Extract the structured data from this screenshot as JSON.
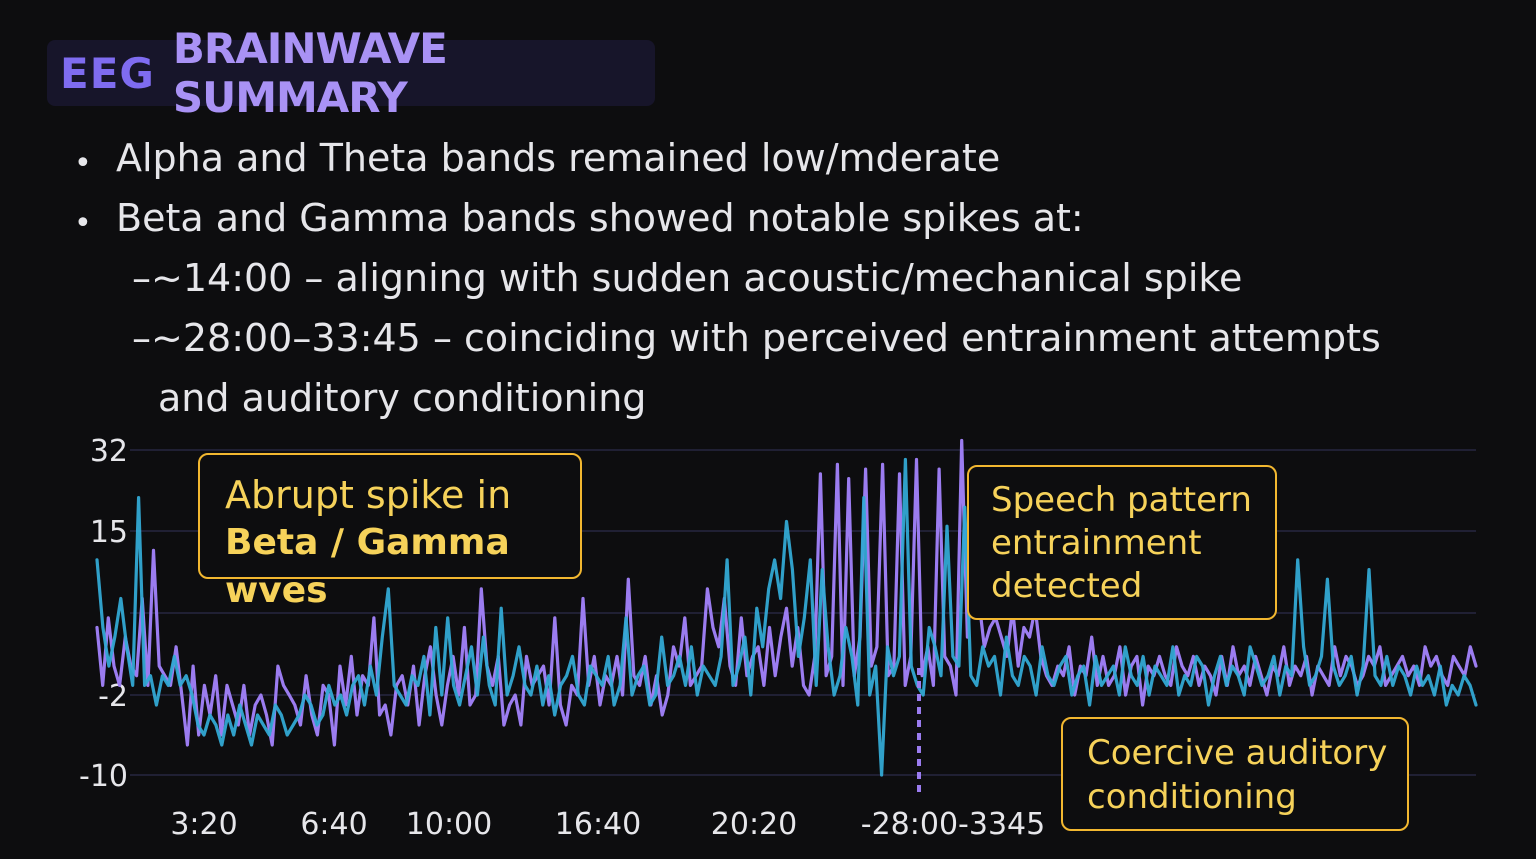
{
  "header": {
    "title_a": "EEG",
    "title_b": "BRAINWAVE SUMMARY"
  },
  "bullets": [
    "Alpha and Theta bands remained low/mderate",
    "Beta and Gamma bands showed notable spikes at:"
  ],
  "sub_bullets": [
    "–~14:00 – aligning with sudden acoustic/mechanical spike",
    "–~28:00–33:45 – coinciding with perceived entrainment attempts",
    "and auditory conditioning"
  ],
  "callouts": {
    "beta_gamma": [
      "Abrupt spike in",
      "Beta / Gamma wves"
    ],
    "speech": [
      "Speech pattern",
      "entrainment",
      "detected"
    ],
    "coercive": [
      "Coercive auditory",
      "conditioning"
    ]
  },
  "colors": {
    "purple_series": "#9b7cf0",
    "cyan_series": "#33a9d4",
    "callout_border": "#f2b730",
    "callout_text": "#f6d25a"
  },
  "chart_data": {
    "type": "line",
    "y_ticks": [
      "32",
      "15",
      "-2",
      "-10"
    ],
    "x_ticks": [
      "3:20",
      "6:40",
      "10:00",
      "16:40",
      "20:20",
      "-28:00-3345"
    ],
    "ylim": [
      -10,
      32
    ],
    "grid": true,
    "marker_line": "~28:00",
    "series": [
      {
        "color": "#9b7cf0",
        "values": [
          5,
          -1,
          6,
          1,
          -1,
          4,
          1,
          0,
          8,
          -1,
          13,
          1,
          0,
          -1,
          3,
          -2,
          -7,
          1,
          -6,
          -1,
          -4,
          0,
          -6,
          -1,
          -3,
          -5,
          -1,
          -6,
          -3,
          -2,
          -4,
          -7,
          1,
          -1,
          -2,
          -3,
          -5,
          0,
          -4,
          -6,
          -1,
          -2,
          -7,
          1,
          -3,
          2,
          -4,
          0,
          -1,
          6,
          -4,
          -3,
          -6,
          -1,
          0,
          -3,
          1,
          -5,
          0,
          3,
          -2,
          -5,
          -1,
          2,
          -2,
          5,
          -3,
          -2,
          9,
          1,
          -1,
          2,
          -5,
          -3,
          -2,
          -5,
          2,
          -1,
          0,
          1,
          -3,
          6,
          -3,
          -5,
          -1,
          -2,
          8,
          -1,
          2,
          -3,
          0,
          -1,
          2,
          -2,
          10,
          0,
          -1,
          2,
          -3,
          0,
          -4,
          -2,
          3,
          1,
          6,
          -1,
          0,
          1,
          9,
          5,
          3,
          8,
          1,
          -1,
          6,
          0,
          2,
          3,
          -1,
          5,
          0,
          4,
          7,
          1,
          5,
          -1,
          -2,
          2,
          27,
          0,
          2,
          29,
          -1,
          26,
          0,
          4,
          28,
          1,
          3,
          29,
          0,
          1,
          27,
          -1,
          2,
          30,
          0,
          3,
          -1,
          28,
          2,
          1,
          -2,
          34,
          4,
          12,
          8,
          3,
          5,
          6,
          4,
          2,
          7,
          1,
          5,
          4,
          7,
          2,
          0,
          -1,
          1,
          0,
          3,
          -2,
          1,
          0,
          4,
          -1,
          2,
          -1,
          0,
          3,
          -2,
          1,
          2,
          -3,
          1,
          0,
          2,
          0,
          -1,
          3,
          1,
          0,
          2,
          -1,
          1,
          0,
          -2,
          2,
          -1,
          3,
          0,
          1,
          -1,
          2,
          0,
          -2,
          1,
          0,
          3,
          -1,
          1,
          0,
          2,
          -2,
          1,
          0,
          -1,
          3,
          0,
          2,
          1,
          -1,
          0,
          2,
          1,
          3,
          -1,
          0,
          1,
          2,
          0,
          1,
          -1,
          3,
          1,
          2,
          0,
          -1,
          2,
          1,
          0,
          3,
          1
        ]
      },
      {
        "color": "#33a9d4",
        "values": [
          12,
          5,
          1,
          4,
          8,
          3,
          -1,
          22,
          -1,
          0,
          -3,
          0,
          -1,
          2,
          -1,
          0,
          -2,
          -5,
          -6,
          -4,
          -5,
          -7,
          -4,
          -6,
          -3,
          -5,
          -7,
          -4,
          -5,
          -6,
          -3,
          -4,
          -6,
          -5,
          -4,
          -2,
          -3,
          -5,
          -4,
          -1,
          -3,
          -2,
          -4,
          -1,
          0,
          -3,
          1,
          -2,
          4,
          9,
          -1,
          -2,
          -3,
          0,
          -1,
          2,
          -4,
          5,
          -2,
          6,
          -1,
          -3,
          0,
          3,
          -2,
          4,
          -1,
          -3,
          7,
          -2,
          0,
          3,
          -1,
          -2,
          1,
          -3,
          0,
          -4,
          -1,
          0,
          2,
          -2,
          -3,
          1,
          0,
          -1,
          2,
          -3,
          -1,
          6,
          -2,
          0,
          1,
          -3,
          -2,
          4,
          -1,
          0,
          2,
          -1,
          3,
          -2,
          1,
          0,
          -1,
          2,
          12,
          -1,
          1,
          4,
          -2,
          7,
          3,
          9,
          12,
          8,
          17,
          11,
          2,
          6,
          12,
          -1,
          11,
          3,
          -2,
          0,
          5,
          2,
          -3,
          22,
          -2,
          1,
          -10,
          3,
          0,
          2,
          30,
          1,
          -1,
          -2,
          5,
          3,
          0,
          16,
          2,
          1,
          20,
          0,
          -1,
          3,
          1,
          2,
          -2,
          4,
          0,
          -1,
          2,
          1,
          -2,
          3,
          0,
          -1,
          1,
          2,
          -2,
          0,
          1,
          -3,
          2,
          -1,
          0,
          1,
          -2,
          3,
          0,
          -1,
          2,
          -2,
          1,
          0,
          -1,
          3,
          -2,
          0,
          -1,
          2,
          1,
          -3,
          0,
          2,
          -1,
          1,
          0,
          -2,
          3,
          1,
          -1,
          0,
          2,
          -2,
          1,
          0,
          12,
          3,
          -1,
          0,
          2,
          10,
          1,
          -1,
          0,
          2,
          -2,
          1,
          11,
          0,
          -1,
          2,
          -1,
          1,
          0,
          -2,
          1,
          -1,
          0,
          -2,
          1,
          -3,
          -1,
          -2,
          0,
          -1,
          -3
        ]
      }
    ]
  }
}
